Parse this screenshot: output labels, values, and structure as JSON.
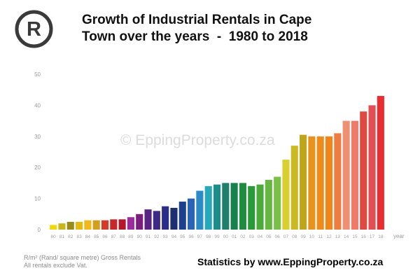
{
  "logo": {
    "icon": "registered-trademark-icon",
    "glyph": "R"
  },
  "header": {
    "title_line1": "Growth of Industrial Rentals in Cape",
    "title_line2": "Town over the years  -  1980 to 2018"
  },
  "watermark": "© EppingProperty.co.za",
  "footer": {
    "note_line1": "R/m² (Rand/ square metre) Gross Rentals",
    "note_line2": "All rentals exclude Vat.",
    "credit": "Statistics by www.EppingProperty.co.za"
  },
  "chart_data": {
    "type": "bar",
    "title": "Growth of Industrial Rentals in Cape Town over the years  -  1980 to 2018",
    "xlabel": "year",
    "ylabel": "",
    "ylim": [
      0,
      50
    ],
    "yticks": [
      0,
      10,
      20,
      30,
      40,
      50
    ],
    "grid": false,
    "categories": [
      "80",
      "81",
      "82",
      "83",
      "84",
      "85",
      "86",
      "87",
      "88",
      "89",
      "90",
      "91",
      "92",
      "93",
      "94",
      "95",
      "96",
      "97",
      "98",
      "99",
      "00",
      "01",
      "02",
      "03",
      "04",
      "05",
      "06",
      "07",
      "08",
      "09",
      "10",
      "11",
      "12",
      "13",
      "14",
      "15",
      "16",
      "17",
      "18"
    ],
    "values": [
      1.5,
      2,
      2.5,
      2.5,
      3,
      3,
      3,
      3.3,
      3.3,
      4,
      5,
      6.5,
      6,
      7.5,
      7,
      9,
      10,
      12.5,
      14,
      14.5,
      15,
      15,
      15,
      14,
      14.5,
      16,
      17,
      22.5,
      27,
      30.5,
      30,
      30,
      30,
      31,
      35,
      35,
      38,
      40,
      43
    ],
    "colors": [
      "#f2d70c",
      "#c9b51a",
      "#998a1c",
      "#e3b912",
      "#f0b81a",
      "#d2a01e",
      "#d63a2a",
      "#c7282a",
      "#b3192a",
      "#9b2c9c",
      "#7b1f7e",
      "#5a2582",
      "#3d2a86",
      "#2a2e8a",
      "#1c2f6e",
      "#1e3f8e",
      "#2a63b3",
      "#2b8bc6",
      "#26a9b8",
      "#1c8e8a",
      "#1f7f6a",
      "#17814e",
      "#1e8b3f",
      "#2a9a38",
      "#4caa3a",
      "#66b740",
      "#79c046",
      "#d9cf2e",
      "#cbb922",
      "#bfa51b",
      "#e8911c",
      "#f08a1a",
      "#f28418",
      "#f07c3f",
      "#ef8f74",
      "#ee7a68",
      "#de4a43",
      "#e24e52",
      "#ea2b2f"
    ]
  }
}
